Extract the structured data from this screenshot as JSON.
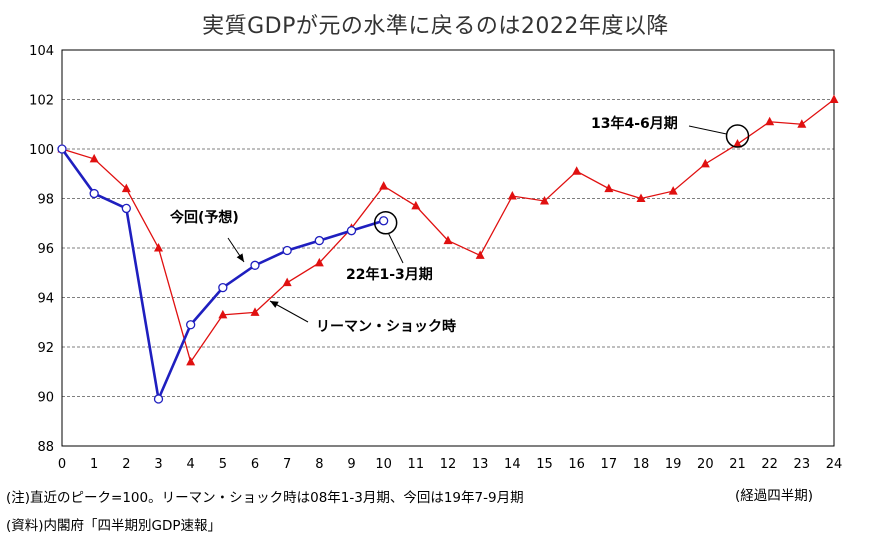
{
  "chart_data": {
    "type": "line",
    "title": "実質GDPが元の水準に戻るのは2022年度以降",
    "x": [
      0,
      1,
      2,
      3,
      4,
      5,
      6,
      7,
      8,
      9,
      10,
      11,
      12,
      13,
      14,
      15,
      16,
      17,
      18,
      19,
      20,
      21,
      22,
      23,
      24
    ],
    "xlim": [
      0,
      24
    ],
    "ylim": [
      88,
      104
    ],
    "yticks": [
      88,
      90,
      92,
      94,
      96,
      98,
      100,
      102,
      104
    ],
    "x_unit_label": "(経過四半期)",
    "grid": "horizontal dashed",
    "series": [
      {
        "name": "今回(予想)",
        "color": "#1f1fbf",
        "marker": "circle",
        "x": [
          0,
          1,
          2,
          3,
          4,
          5,
          6,
          7,
          8,
          9,
          10
        ],
        "values": [
          100.0,
          98.2,
          97.6,
          89.9,
          92.9,
          94.4,
          95.3,
          95.9,
          96.3,
          96.7,
          97.1
        ]
      },
      {
        "name": "リーマン・ショック時",
        "color": "#e01010",
        "marker": "triangle",
        "x": [
          0,
          1,
          2,
          3,
          4,
          5,
          6,
          7,
          8,
          9,
          10,
          11,
          12,
          13,
          14,
          15,
          16,
          17,
          18,
          19,
          20,
          21,
          22,
          23,
          24
        ],
        "values": [
          100.0,
          99.6,
          98.4,
          96.0,
          91.4,
          93.3,
          93.4,
          94.6,
          95.4,
          96.8,
          98.5,
          97.7,
          96.3,
          95.7,
          98.1,
          97.9,
          99.1,
          98.4,
          98.0,
          98.3,
          99.4,
          100.2,
          101.1,
          101.0,
          102.0
        ]
      }
    ],
    "annotations": [
      {
        "text": "13年4-6月期",
        "target_series": 1,
        "x": 21,
        "y": 100.2
      },
      {
        "text": "22年1-3月期",
        "target_series": 0,
        "x": 10,
        "y": 97.1
      }
    ]
  },
  "notes": {
    "note1": "(注)直近のピーク=100。リーマン・ショック時は08年1-3月期、今回は19年7-9月期",
    "note2": "(資料)内閣府「四半期別GDP速報」"
  }
}
